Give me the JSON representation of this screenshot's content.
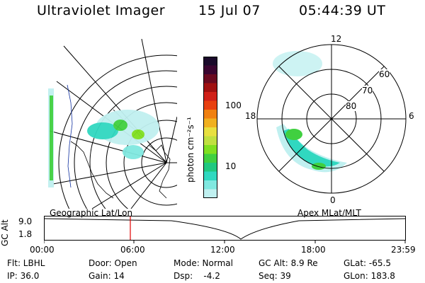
{
  "header": {
    "title": "Ultraviolet Imager",
    "date": "15 Jul 07",
    "time": "05:44:39 UT"
  },
  "colorbar": {
    "unit_label": "photon cm⁻²s⁻¹",
    "ticks": [
      "100",
      "10"
    ],
    "colors": [
      "#1a0a2a",
      "#3a0530",
      "#6a0a20",
      "#a01010",
      "#d02018",
      "#e84010",
      "#f08010",
      "#f0b020",
      "#e8e040",
      "#c0e040",
      "#80e020",
      "#40d040",
      "#20c880",
      "#30d8c0",
      "#80e8e0",
      "#c0f0f0"
    ]
  },
  "left_panel": {
    "label": "Geographic Lat/Lon"
  },
  "right_panel": {
    "label": "Apex MLat/MLT",
    "lat_labels": [
      "60",
      "70",
      "80"
    ],
    "mlt_labels": {
      "top": "12",
      "bottom": "0",
      "left": "18",
      "right": "6"
    }
  },
  "timeline": {
    "ylabel": "GC Alt",
    "yticks": [
      "9.0",
      "1.8"
    ],
    "xticks": [
      "00:00",
      "06:00",
      "12:00",
      "18:00",
      "23:59"
    ],
    "marker_time_hours": 5.74,
    "marker_color": "#e00000"
  },
  "info": {
    "row1": {
      "filter": "Flt: LBHL",
      "door": "Door: Open",
      "mode": "Mode: Normal",
      "gc_alt": "GC Alt: 8.9 Re",
      "glat": "GLat: -65.5"
    },
    "row2": {
      "ip": "IP: 36.0",
      "gain": "Gain: 14",
      "dsp": "Dsp:    -4.2",
      "seq": "Seq: 39",
      "glon": "GLon: 183.8"
    }
  },
  "icons": {
    "left_map": "geographic-globe-map",
    "right_map": "polar-dial-map"
  }
}
